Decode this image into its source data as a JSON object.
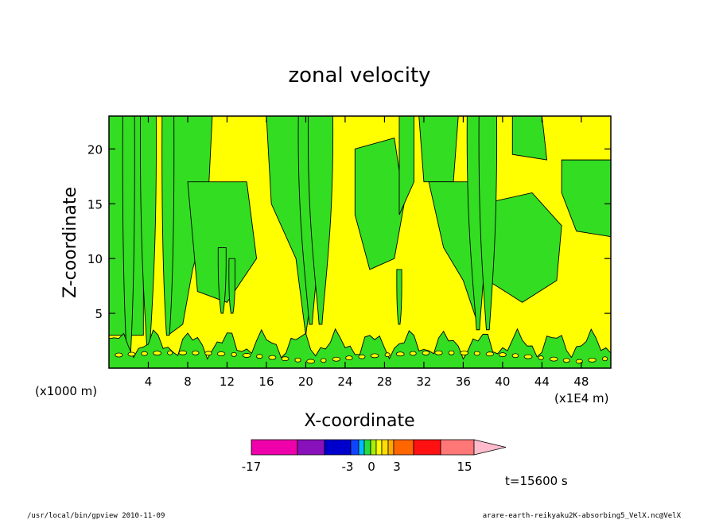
{
  "chart_data": {
    "type": "heatmap",
    "title": "zonal velocity",
    "xlabel": "X-coordinate",
    "ylabel": "Z-coordinate",
    "x_units": "(x1E4 m)",
    "y_units": "(x1000 m)",
    "x_ticks": [
      "4",
      "8",
      "12",
      "16",
      "20",
      "24",
      "28",
      "32",
      "36",
      "40",
      "44",
      "48"
    ],
    "y_ticks": [
      "5",
      "10",
      "15",
      "20"
    ],
    "xlim": [
      0,
      51
    ],
    "ylim": [
      0,
      23
    ],
    "field_note": "Filled contours: yellow regions (0 to 3) and green regions (-3 to 0), thin black contour lines",
    "colors": {
      "yellow": "#ffff00",
      "green": "#33dd22",
      "outline": "#000000"
    },
    "colorbar": {
      "colors": [
        "#ee00aa",
        "#8811bb",
        "#0000cc",
        "#1144ff",
        "#00bbff",
        "#22dd44",
        "#aaee00",
        "#ffff00",
        "#ffdd00",
        "#ffaa00",
        "#ff6600",
        "#ff1111",
        "#ff7777",
        "#ffbbcc"
      ],
      "labels": [
        "-17",
        "-3",
        "0",
        "3",
        "15"
      ]
    },
    "annotation": "t=15600 s"
  },
  "footer": {
    "left": "/usr/local/bin/gpview   2010-11-09",
    "right": "arare-earth-reikyaku2K-absorbing5_VelX.nc@VelX"
  }
}
